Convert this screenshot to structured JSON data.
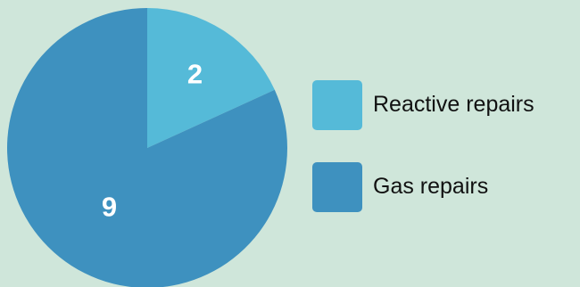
{
  "chart_data": {
    "type": "pie",
    "title": "",
    "legend_position": "right",
    "slices": [
      {
        "name": "Reactive repairs",
        "value": 2,
        "color": "#55bad8"
      },
      {
        "name": "Gas repairs",
        "value": 9,
        "color": "#3e91bf"
      }
    ]
  },
  "legend": {
    "items": [
      {
        "label": "Reactive repairs",
        "color": "#55bad8"
      },
      {
        "label": "Gas repairs",
        "color": "#3e91bf"
      }
    ]
  }
}
